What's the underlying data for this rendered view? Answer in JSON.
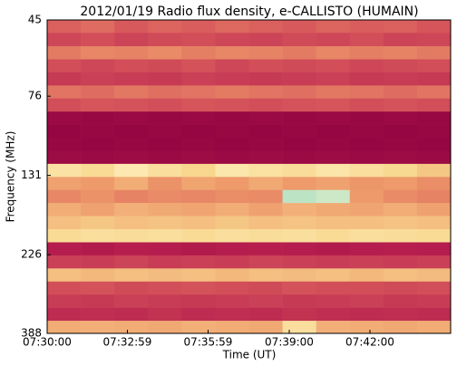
{
  "chart_data": {
    "type": "spectrogram",
    "title": "2012/01/19  Radio flux density, e-CALLISTO (HUMAIN)",
    "xlabel": "Time (UT)",
    "ylabel": "Frequency (MHz)",
    "xlim": [
      "07:30:00",
      "07:45:00"
    ],
    "xticks": [
      "07:30:00",
      "07:32:59",
      "07:35:59",
      "07:39:00",
      "07:42:00"
    ],
    "ylim": [
      45,
      388
    ],
    "yticks": [
      45,
      76,
      131,
      226,
      388
    ],
    "yscale": "log",
    "y_inverted": true,
    "zlim": [
      0,
      1
    ],
    "colors": [
      "#8e0040",
      "#b8204e",
      "#d85a5c",
      "#ee9a6a",
      "#f8d890",
      "#fff8d0",
      "#7fd0b8"
    ],
    "xbins": [
      "07:30:00",
      "07:31:15",
      "07:32:30",
      "07:33:45",
      "07:35:00",
      "07:36:15",
      "07:37:30",
      "07:38:45",
      "07:40:00",
      "07:41:15",
      "07:42:30",
      "07:43:45",
      "07:45:00"
    ],
    "ybins": [
      45,
      49.2,
      53.9,
      59.0,
      64.5,
      70.6,
      77.2,
      84.5,
      92.4,
      101,
      110.6,
      121,
      132.4,
      144.8,
      158.4,
      173.3,
      189.6,
      207.5,
      227,
      248.3,
      271.7,
      297.2,
      325.2,
      355.8,
      388
    ],
    "z": [
      [
        0.35,
        0.38,
        0.33,
        0.36,
        0.34,
        0.37,
        0.35,
        0.33,
        0.36,
        0.34,
        0.35,
        0.32
      ],
      [
        0.28,
        0.3,
        0.27,
        0.29,
        0.3,
        0.28,
        0.27,
        0.29,
        0.28,
        0.3,
        0.27,
        0.28
      ],
      [
        0.42,
        0.45,
        0.44,
        0.46,
        0.43,
        0.45,
        0.44,
        0.42,
        0.45,
        0.43,
        0.44,
        0.42
      ],
      [
        0.3,
        0.28,
        0.3,
        0.29,
        0.31,
        0.28,
        0.3,
        0.29,
        0.3,
        0.28,
        0.29,
        0.3
      ],
      [
        0.24,
        0.26,
        0.25,
        0.24,
        0.26,
        0.25,
        0.24,
        0.25,
        0.26,
        0.24,
        0.25,
        0.24
      ],
      [
        0.4,
        0.38,
        0.41,
        0.39,
        0.4,
        0.42,
        0.4,
        0.39,
        0.41,
        0.4,
        0.38,
        0.4
      ],
      [
        0.3,
        0.32,
        0.31,
        0.3,
        0.32,
        0.31,
        0.3,
        0.31,
        0.32,
        0.3,
        0.31,
        0.3
      ],
      [
        0.05,
        0.04,
        0.05,
        0.04,
        0.05,
        0.04,
        0.05,
        0.04,
        0.05,
        0.04,
        0.05,
        0.04
      ],
      [
        0.03,
        0.04,
        0.03,
        0.04,
        0.03,
        0.04,
        0.03,
        0.04,
        0.03,
        0.04,
        0.03,
        0.04
      ],
      [
        0.04,
        0.03,
        0.04,
        0.03,
        0.04,
        0.03,
        0.04,
        0.03,
        0.04,
        0.03,
        0.04,
        0.03
      ],
      [
        0.06,
        0.05,
        0.06,
        0.05,
        0.06,
        0.05,
        0.06,
        0.05,
        0.06,
        0.05,
        0.06,
        0.05
      ],
      [
        0.72,
        0.68,
        0.75,
        0.7,
        0.66,
        0.74,
        0.71,
        0.69,
        0.73,
        0.7,
        0.67,
        0.62
      ],
      [
        0.52,
        0.5,
        0.55,
        0.48,
        0.53,
        0.5,
        0.54,
        0.5,
        0.52,
        0.49,
        0.5,
        0.47
      ],
      [
        0.45,
        0.48,
        0.44,
        0.46,
        0.45,
        0.47,
        0.46,
        0.92,
        0.9,
        0.5,
        0.46,
        0.44
      ],
      [
        0.55,
        0.52,
        0.56,
        0.54,
        0.53,
        0.55,
        0.52,
        0.56,
        0.54,
        0.53,
        0.55,
        0.52
      ],
      [
        0.6,
        0.62,
        0.6,
        0.61,
        0.6,
        0.62,
        0.6,
        0.61,
        0.6,
        0.6,
        0.61,
        0.6
      ],
      [
        0.68,
        0.7,
        0.69,
        0.7,
        0.68,
        0.7,
        0.69,
        0.7,
        0.68,
        0.7,
        0.69,
        0.68
      ],
      [
        0.15,
        0.14,
        0.16,
        0.15,
        0.14,
        0.15,
        0.16,
        0.15,
        0.14,
        0.15,
        0.16,
        0.15
      ],
      [
        0.26,
        0.25,
        0.27,
        0.25,
        0.26,
        0.25,
        0.27,
        0.26,
        0.25,
        0.26,
        0.25,
        0.26
      ],
      [
        0.6,
        0.58,
        0.6,
        0.59,
        0.6,
        0.58,
        0.6,
        0.59,
        0.6,
        0.58,
        0.6,
        0.59
      ],
      [
        0.3,
        0.31,
        0.29,
        0.3,
        0.31,
        0.3,
        0.29,
        0.31,
        0.3,
        0.3,
        0.29,
        0.3
      ],
      [
        0.25,
        0.24,
        0.26,
        0.25,
        0.24,
        0.25,
        0.26,
        0.24,
        0.25,
        0.26,
        0.24,
        0.25
      ],
      [
        0.2,
        0.21,
        0.2,
        0.22,
        0.2,
        0.21,
        0.2,
        0.22,
        0.21,
        0.2,
        0.21,
        0.2
      ],
      [
        0.55,
        0.56,
        0.55,
        0.54,
        0.56,
        0.55,
        0.54,
        0.7,
        0.56,
        0.55,
        0.54,
        0.55
      ]
    ]
  }
}
